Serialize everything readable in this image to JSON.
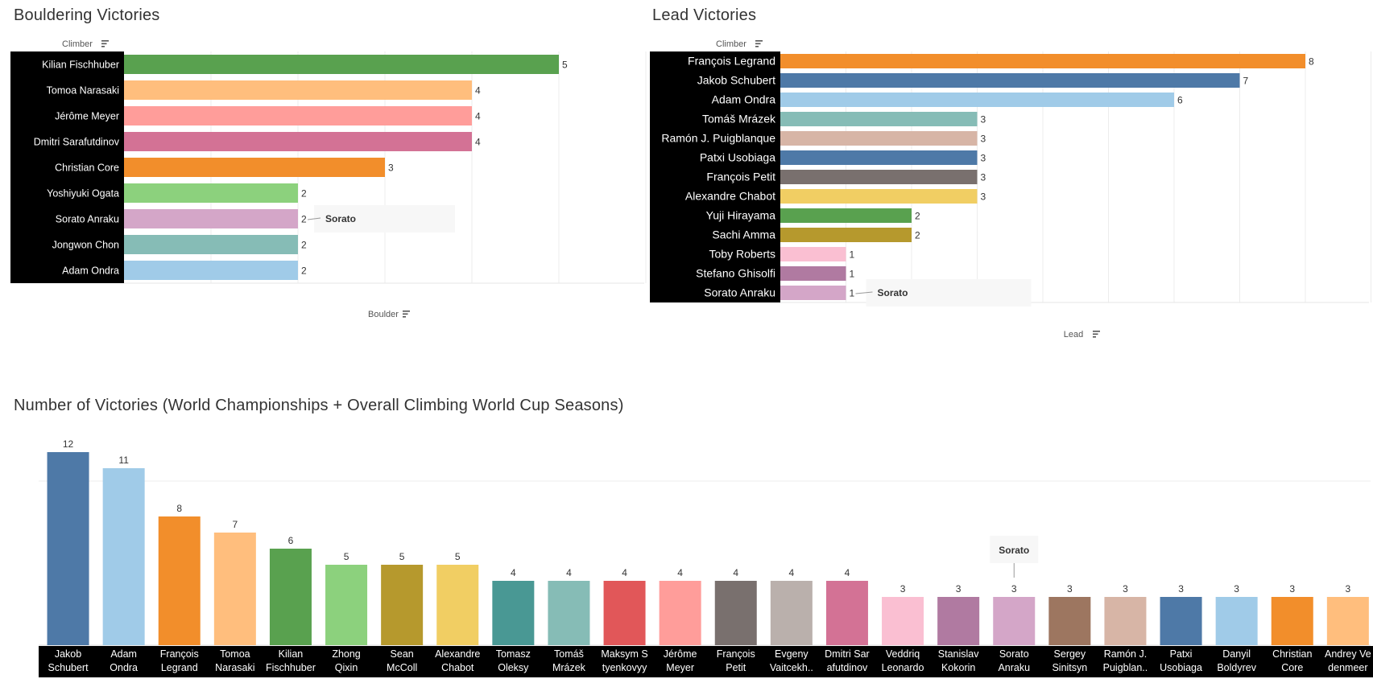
{
  "boulder_panel": {
    "title": "Bouldering Victories"
  },
  "lead_panel": {
    "title": "Lead Victories"
  },
  "total_panel": {
    "title": "Number of Victories (World Championships + Overall Climbing World Cup Seasons)"
  },
  "chart_data": [
    {
      "id": "boulder",
      "type": "bar",
      "orientation": "horizontal",
      "title": "Bouldering Victories",
      "row_header": "Climber",
      "xlabel": "Boulder",
      "annotation": {
        "label": "Sorato",
        "target": "Sorato Anraku"
      },
      "categories": [
        "Kilian Fischhuber",
        "Tomoa Narasaki",
        "Jérôme Meyer",
        "Dmitri Sarafutdinov",
        "Christian Core",
        "Yoshiyuki Ogata",
        "Sorato Anraku",
        "Jongwon Chon",
        "Adam Ondra"
      ],
      "values": [
        5,
        4,
        4,
        4,
        3,
        2,
        2,
        2,
        2
      ],
      "colors": [
        "#59a14f",
        "#ffbe7d",
        "#ff9d9a",
        "#d37295",
        "#f28e2b",
        "#8cd17d",
        "#d4a6c8",
        "#86bcb6",
        "#a0cbe8"
      ],
      "xlim": [
        0,
        6
      ]
    },
    {
      "id": "lead",
      "type": "bar",
      "orientation": "horizontal",
      "title": "Lead Victories",
      "row_header": "Climber",
      "xlabel": "Lead",
      "annotation": {
        "label": "Sorato",
        "target": "Sorato Anraku"
      },
      "categories": [
        "François Legrand",
        "Jakob Schubert",
        "Adam Ondra",
        "Tomáš Mrázek",
        "Ramón J. Puigblanque",
        "Patxi Usobiaga",
        "François Petit",
        "Alexandre Chabot",
        "Yuji Hirayama",
        "Sachi Amma",
        "Toby Roberts",
        "Stefano Ghisolfi",
        "Sorato Anraku"
      ],
      "values": [
        8,
        7,
        6,
        3,
        3,
        3,
        3,
        3,
        2,
        2,
        1,
        1,
        1
      ],
      "colors": [
        "#f28e2b",
        "#4e79a7",
        "#a0cbe8",
        "#86bcb6",
        "#d7b5a6",
        "#4e79a7",
        "#79706e",
        "#f1ce63",
        "#59a14f",
        "#b6992d",
        "#fabfd2",
        "#b07aa1",
        "#d4a6c8"
      ],
      "xlim": [
        0,
        9
      ]
    },
    {
      "id": "total",
      "type": "bar",
      "orientation": "vertical",
      "title": "Number of Victories (World Championships + Overall Climbing World Cup Seasons)",
      "annotation": {
        "label": "Sorato",
        "target": "Sorato\nAnraku"
      },
      "categories": [
        "Jakob\nSchubert",
        "Adam\nOndra",
        "François\nLegrand",
        "Tomoa\nNarasaki",
        "Kilian\nFischhuber",
        "Zhong\nQixin",
        "Sean\nMcColl",
        "Alexandre\nChabot",
        "Tomasz\nOleksy",
        "Tomáš\nMrázek",
        "Maksym S\ntyenkovyy",
        "Jérôme\nMeyer",
        "François\nPetit",
        "Evgeny\nVaitcekh..",
        "Dmitri Sar\nafutdinov",
        "Veddriq\nLeonardo",
        "Stanislav\nKokorin",
        "Sorato\nAnraku",
        "Sergey\nSinitsyn",
        "Ramón J.\nPuigblan..",
        "Patxi\nUsobiaga",
        "Danyil\nBoldyrev",
        "Christian\nCore",
        "Andrey Ve\ndenmeer"
      ],
      "values": [
        12,
        11,
        8,
        7,
        6,
        5,
        5,
        5,
        4,
        4,
        4,
        4,
        4,
        4,
        4,
        3,
        3,
        3,
        3,
        3,
        3,
        3,
        3,
        3
      ],
      "colors": [
        "#4e79a7",
        "#a0cbe8",
        "#f28e2b",
        "#ffbe7d",
        "#59a14f",
        "#8cd17d",
        "#b6992d",
        "#f1ce63",
        "#499894",
        "#86bcb6",
        "#e15759",
        "#ff9d9a",
        "#79706e",
        "#bab0ac",
        "#d37295",
        "#fabfd2",
        "#b07aa1",
        "#d4a6c8",
        "#9d7660",
        "#d7b5a6",
        "#4e79a7",
        "#a0cbe8",
        "#f28e2b",
        "#ffbe7d"
      ],
      "ylim": [
        0,
        12
      ]
    }
  ]
}
